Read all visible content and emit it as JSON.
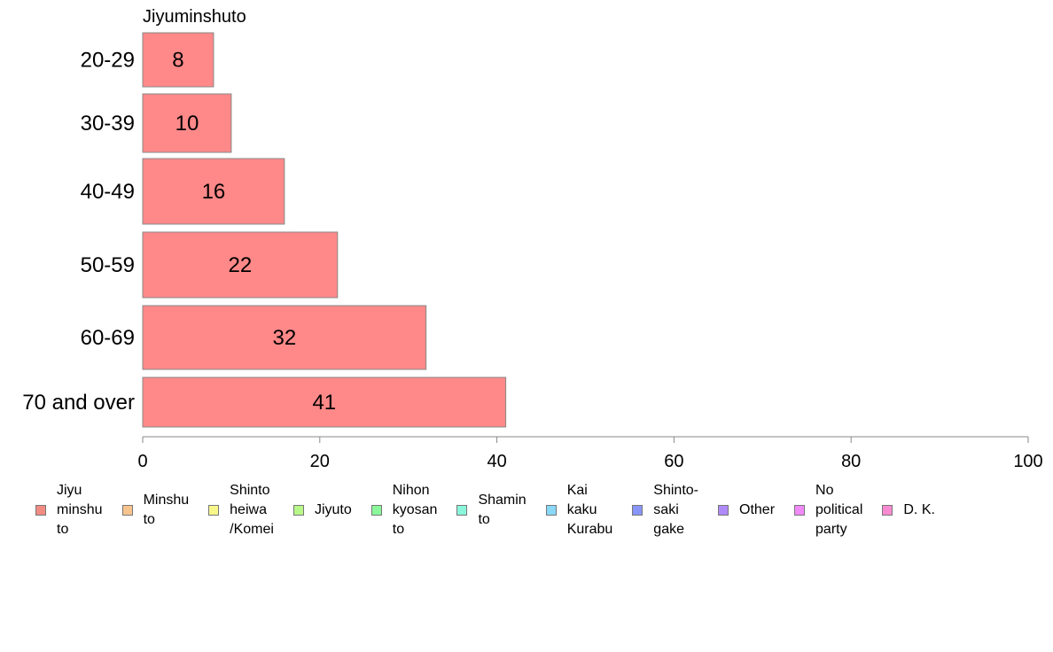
{
  "chart_data": {
    "type": "bar",
    "orientation": "horizontal",
    "title": "Jiyuminshuto",
    "categories": [
      "20-29",
      "30-39",
      "40-49",
      "50-59",
      "60-69",
      "70 and over"
    ],
    "series": [
      {
        "name": "Jiyuminshuto",
        "values": [
          8,
          10,
          16,
          22,
          32,
          41
        ],
        "color": "#ff8888"
      }
    ],
    "data_labels": [
      "8",
      "10",
      "16",
      "22",
      "32",
      "41"
    ],
    "xlim": [
      0,
      100
    ],
    "x_ticks": [
      "0",
      "20",
      "40",
      "60",
      "80",
      "100"
    ],
    "grid": false,
    "legend_position": "bottom",
    "legend": [
      {
        "label": "Jiyu\nminshu\nto",
        "color": "#f28b82"
      },
      {
        "label": "Minshu\nto",
        "color": "#f6c48c"
      },
      {
        "label": "Shinto\nheiwa\n/Komei",
        "color": "#f7f78a"
      },
      {
        "label": "Jiyuto",
        "color": "#b8f78a"
      },
      {
        "label": "Nihon\nkyosan\nto",
        "color": "#8af79b"
      },
      {
        "label": "Shamin\nto",
        "color": "#8af7dc"
      },
      {
        "label": "Kai\nkaku\nKurabu",
        "color": "#8ad8f7"
      },
      {
        "label": "Shinto-\nsaki\ngake",
        "color": "#8a96f7"
      },
      {
        "label": "Other",
        "color": "#b08af7"
      },
      {
        "label": "No\npolitical\nparty",
        "color": "#f08af7"
      },
      {
        "label": "D. K.",
        "color": "#f78ad0"
      }
    ]
  }
}
